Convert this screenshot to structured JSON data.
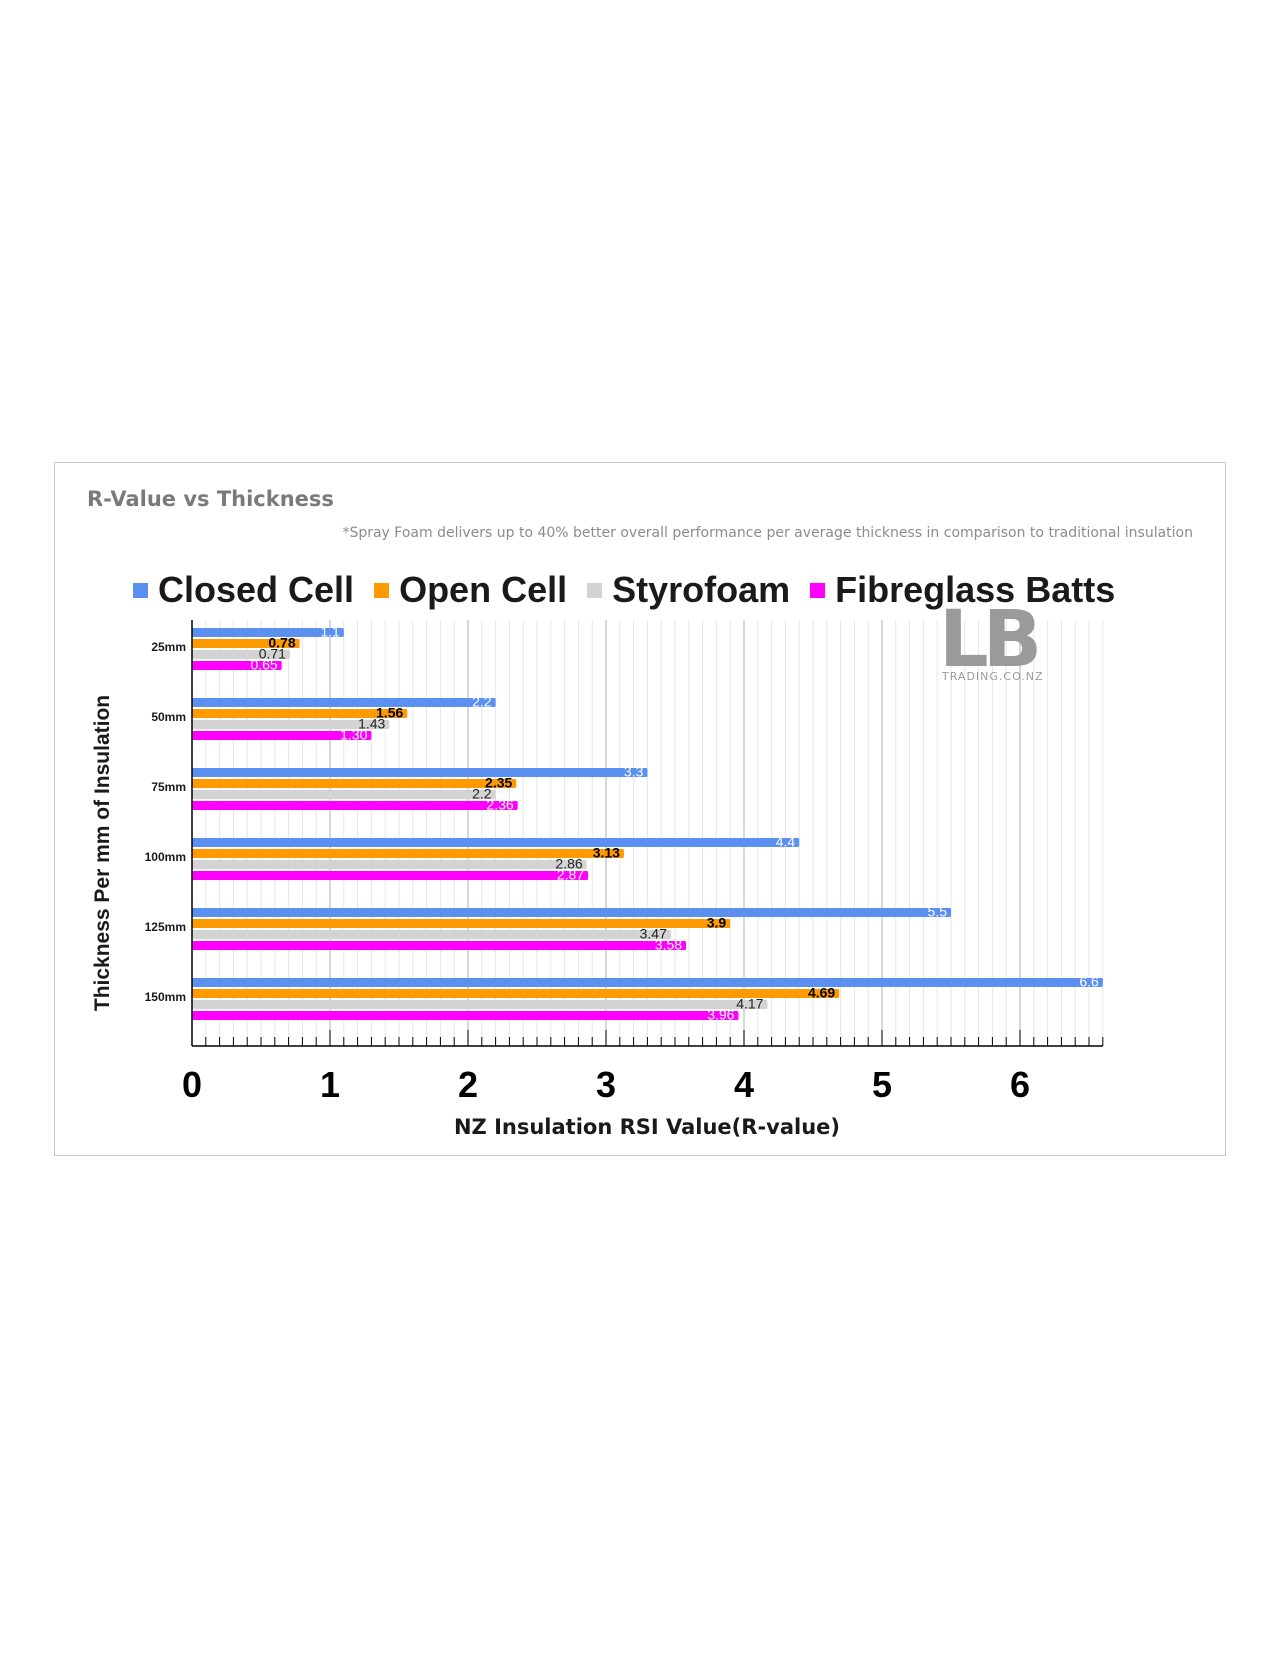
{
  "chart_data": {
    "type": "bar",
    "orientation": "horizontal",
    "title": "R-Value vs Thickness",
    "subtitle": "*Spray Foam delivers up to 40% better overall performance per average thickness in comparison to traditional insulation",
    "xlabel": "NZ Insulation RSI Value(R-value)",
    "ylabel": "Thickness Per mm of Insulation",
    "xlim": [
      0,
      6.6
    ],
    "xticks": [
      "0",
      "1",
      "2",
      "3",
      "4",
      "5",
      "6"
    ],
    "grid": true,
    "legend_position": "top",
    "categories": [
      "25mm",
      "50mm",
      "75mm",
      "100mm",
      "125mm",
      "150mm"
    ],
    "series": [
      {
        "name": "Closed Cell",
        "color": "#5b8ff0",
        "values": [
          1.1,
          2.2,
          3.3,
          4.4,
          5.5,
          6.6
        ],
        "labels": [
          "1.1",
          "2.2",
          "3.3",
          "4.4",
          "5.5",
          "6.6"
        ],
        "label_color": "#ffffff"
      },
      {
        "name": "Open Cell",
        "color": "#ff9b00",
        "values": [
          0.78,
          1.56,
          2.35,
          3.13,
          3.9,
          4.69
        ],
        "labels": [
          "0.78",
          "1.56",
          "2.35",
          "3.13",
          "3.9",
          "4.69"
        ],
        "label_color": "#000000"
      },
      {
        "name": "Styrofoam",
        "color": "#d3d3d3",
        "values": [
          0.71,
          1.43,
          2.2,
          2.86,
          3.47,
          4.17
        ],
        "labels": [
          "0.71",
          "1.43",
          "2.2",
          "2.86",
          "3.47",
          "4.17"
        ],
        "label_color": "#222222"
      },
      {
        "name": "Fibreglass Batts",
        "color": "#ff00ff",
        "values": [
          0.65,
          1.3,
          2.36,
          2.87,
          3.58,
          3.96
        ],
        "labels": [
          "0.65",
          "1.30",
          "2.36",
          "2.87",
          "3.58",
          "3.96"
        ],
        "label_color": "#ffffff"
      }
    ]
  },
  "watermark": {
    "main": "LB",
    "sub": "TRADING.CO.NZ"
  }
}
